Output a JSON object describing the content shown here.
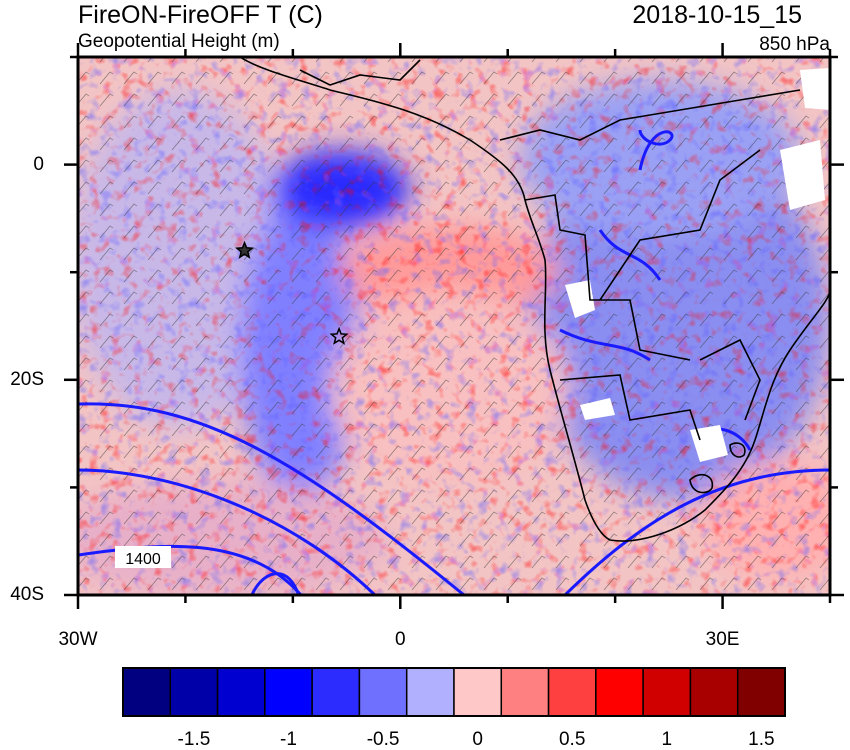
{
  "header": {
    "title": "FireON-FireOFF T (C)",
    "subtitle": "Geopotential Height (m)",
    "datetime": "2018-10-15_15",
    "level": "850 hPa"
  },
  "map": {
    "lon_range": [
      -30,
      40
    ],
    "lat_range": [
      -40,
      10
    ],
    "x_ticks": [
      {
        "value": -30,
        "label": "30W"
      },
      {
        "value": 0,
        "label": "0"
      },
      {
        "value": 30,
        "label": "30E"
      }
    ],
    "y_ticks": [
      {
        "value": 0,
        "label": "0"
      },
      {
        "value": -20,
        "label": "20S"
      },
      {
        "value": -40,
        "label": "40S"
      }
    ],
    "contour_label": "1400",
    "markers": [
      {
        "name": "star-marker-1",
        "lon": -14.5,
        "lat": -8,
        "filled": true
      },
      {
        "name": "star-marker-2",
        "lon": -5.7,
        "lat": -16,
        "filled": false
      }
    ]
  },
  "colorbar": {
    "colors": [
      "#000080",
      "#0000a8",
      "#0000d0",
      "#0000ff",
      "#2c2cff",
      "#7070ff",
      "#b0b0ff",
      "#ffc8c8",
      "#ff8080",
      "#ff4040",
      "#ff0000",
      "#d00000",
      "#a80000",
      "#800000"
    ],
    "labels": [
      "-1.5",
      "-1",
      "-0.5",
      "0",
      "0.5",
      "1",
      "1.5"
    ]
  }
}
